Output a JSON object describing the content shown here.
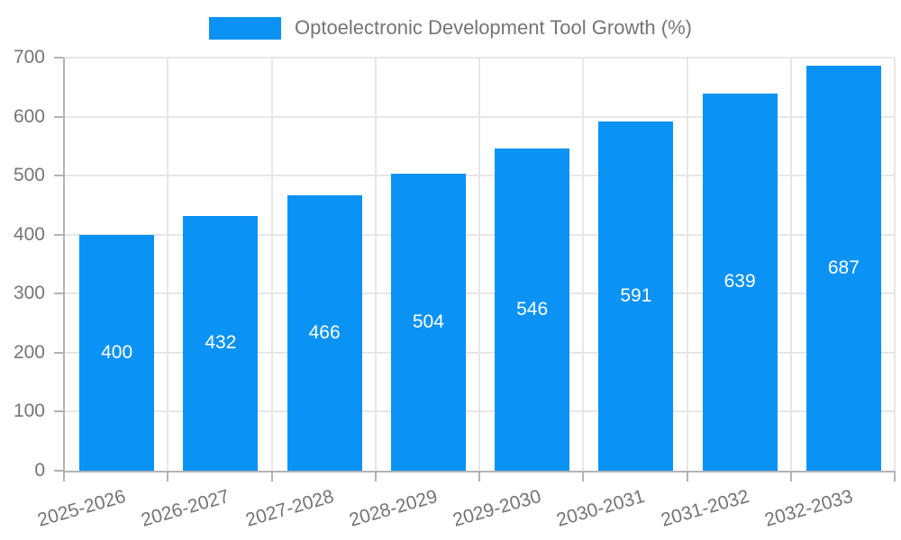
{
  "chart_data": {
    "type": "bar",
    "title": "Optoelectronic Development Tool Growth (%)",
    "legend": {
      "label": "Optoelectronic Development Tool Growth (%)",
      "position": "top"
    },
    "categories": [
      "2025-2026",
      "2026-2027",
      "2027-2028",
      "2028-2029",
      "2029-2030",
      "2030-2031",
      "2031-2032",
      "2032-2033"
    ],
    "values": [
      400,
      432,
      466,
      504,
      546,
      591,
      639,
      687
    ],
    "value_labels_shown": true,
    "value_label_position": "inside-center",
    "xlabel": "",
    "ylabel": "",
    "ylim": [
      0,
      700
    ],
    "yticks": [
      0,
      100,
      200,
      300,
      400,
      500,
      600,
      700
    ],
    "grid": true,
    "colors": {
      "bar": "#0a92f5",
      "value_label": "#ffffff",
      "axis_line": "#b3b3b3",
      "gridline": "#e7e7e7",
      "tick_text": "#757575",
      "legend_text": "#757575",
      "background": "#ffffff"
    }
  }
}
